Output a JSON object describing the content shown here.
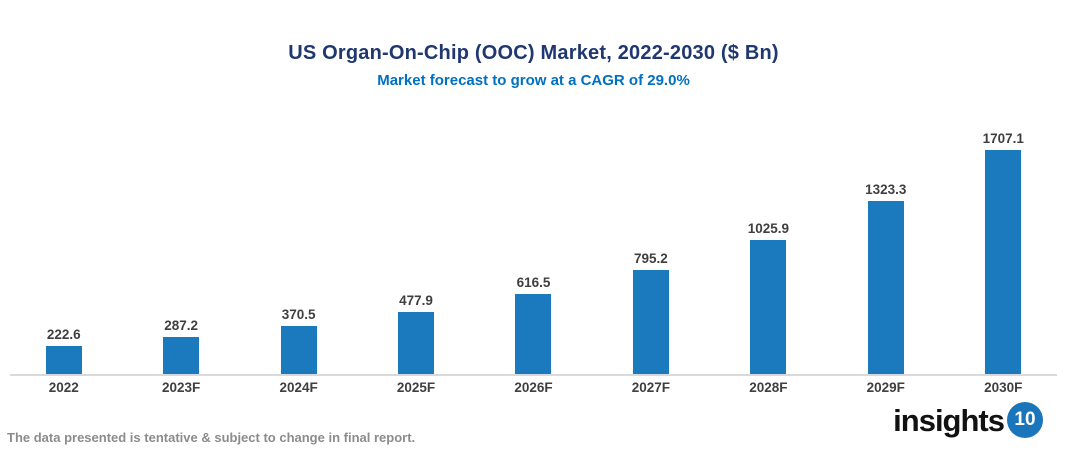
{
  "header": {
    "title": "US Organ-On-Chip (OOC) Market, 2022-2030 ($ Bn)",
    "subtitle": "Market forecast to grow at a CAGR of 29.0%"
  },
  "chart_data": {
    "type": "bar",
    "title": "US Organ-On-Chip (OOC) Market, 2022-2030 ($ Bn)",
    "subtitle": "Market forecast to grow at a CAGR of 29.0%",
    "categories": [
      "2022",
      "2023F",
      "2024F",
      "2025F",
      "2026F",
      "2027F",
      "2028F",
      "2029F",
      "2030F"
    ],
    "values": [
      222.6,
      287.2,
      370.5,
      477.9,
      616.5,
      795.2,
      1025.9,
      1323.3,
      1707.1
    ],
    "xlabel": "",
    "ylabel": "",
    "ylim": [
      0,
      1800
    ],
    "grid": false,
    "legend": false,
    "data_labels": true,
    "cagr_percent": "29.0%"
  },
  "colors": {
    "bar": "#1b79bd",
    "title": "#20386f",
    "subtitle": "#0070c0",
    "value_label": "#3f3f3f",
    "axis_label": "#3f3f3f",
    "axis_line": "#d9d9d9",
    "footnote": "#8c8c8c",
    "logo_circle": "#1b75bb"
  },
  "footer": {
    "footnote": "The data presented is tentative & subject to change in final report.",
    "logo_text": "insights",
    "logo_number": "10"
  }
}
